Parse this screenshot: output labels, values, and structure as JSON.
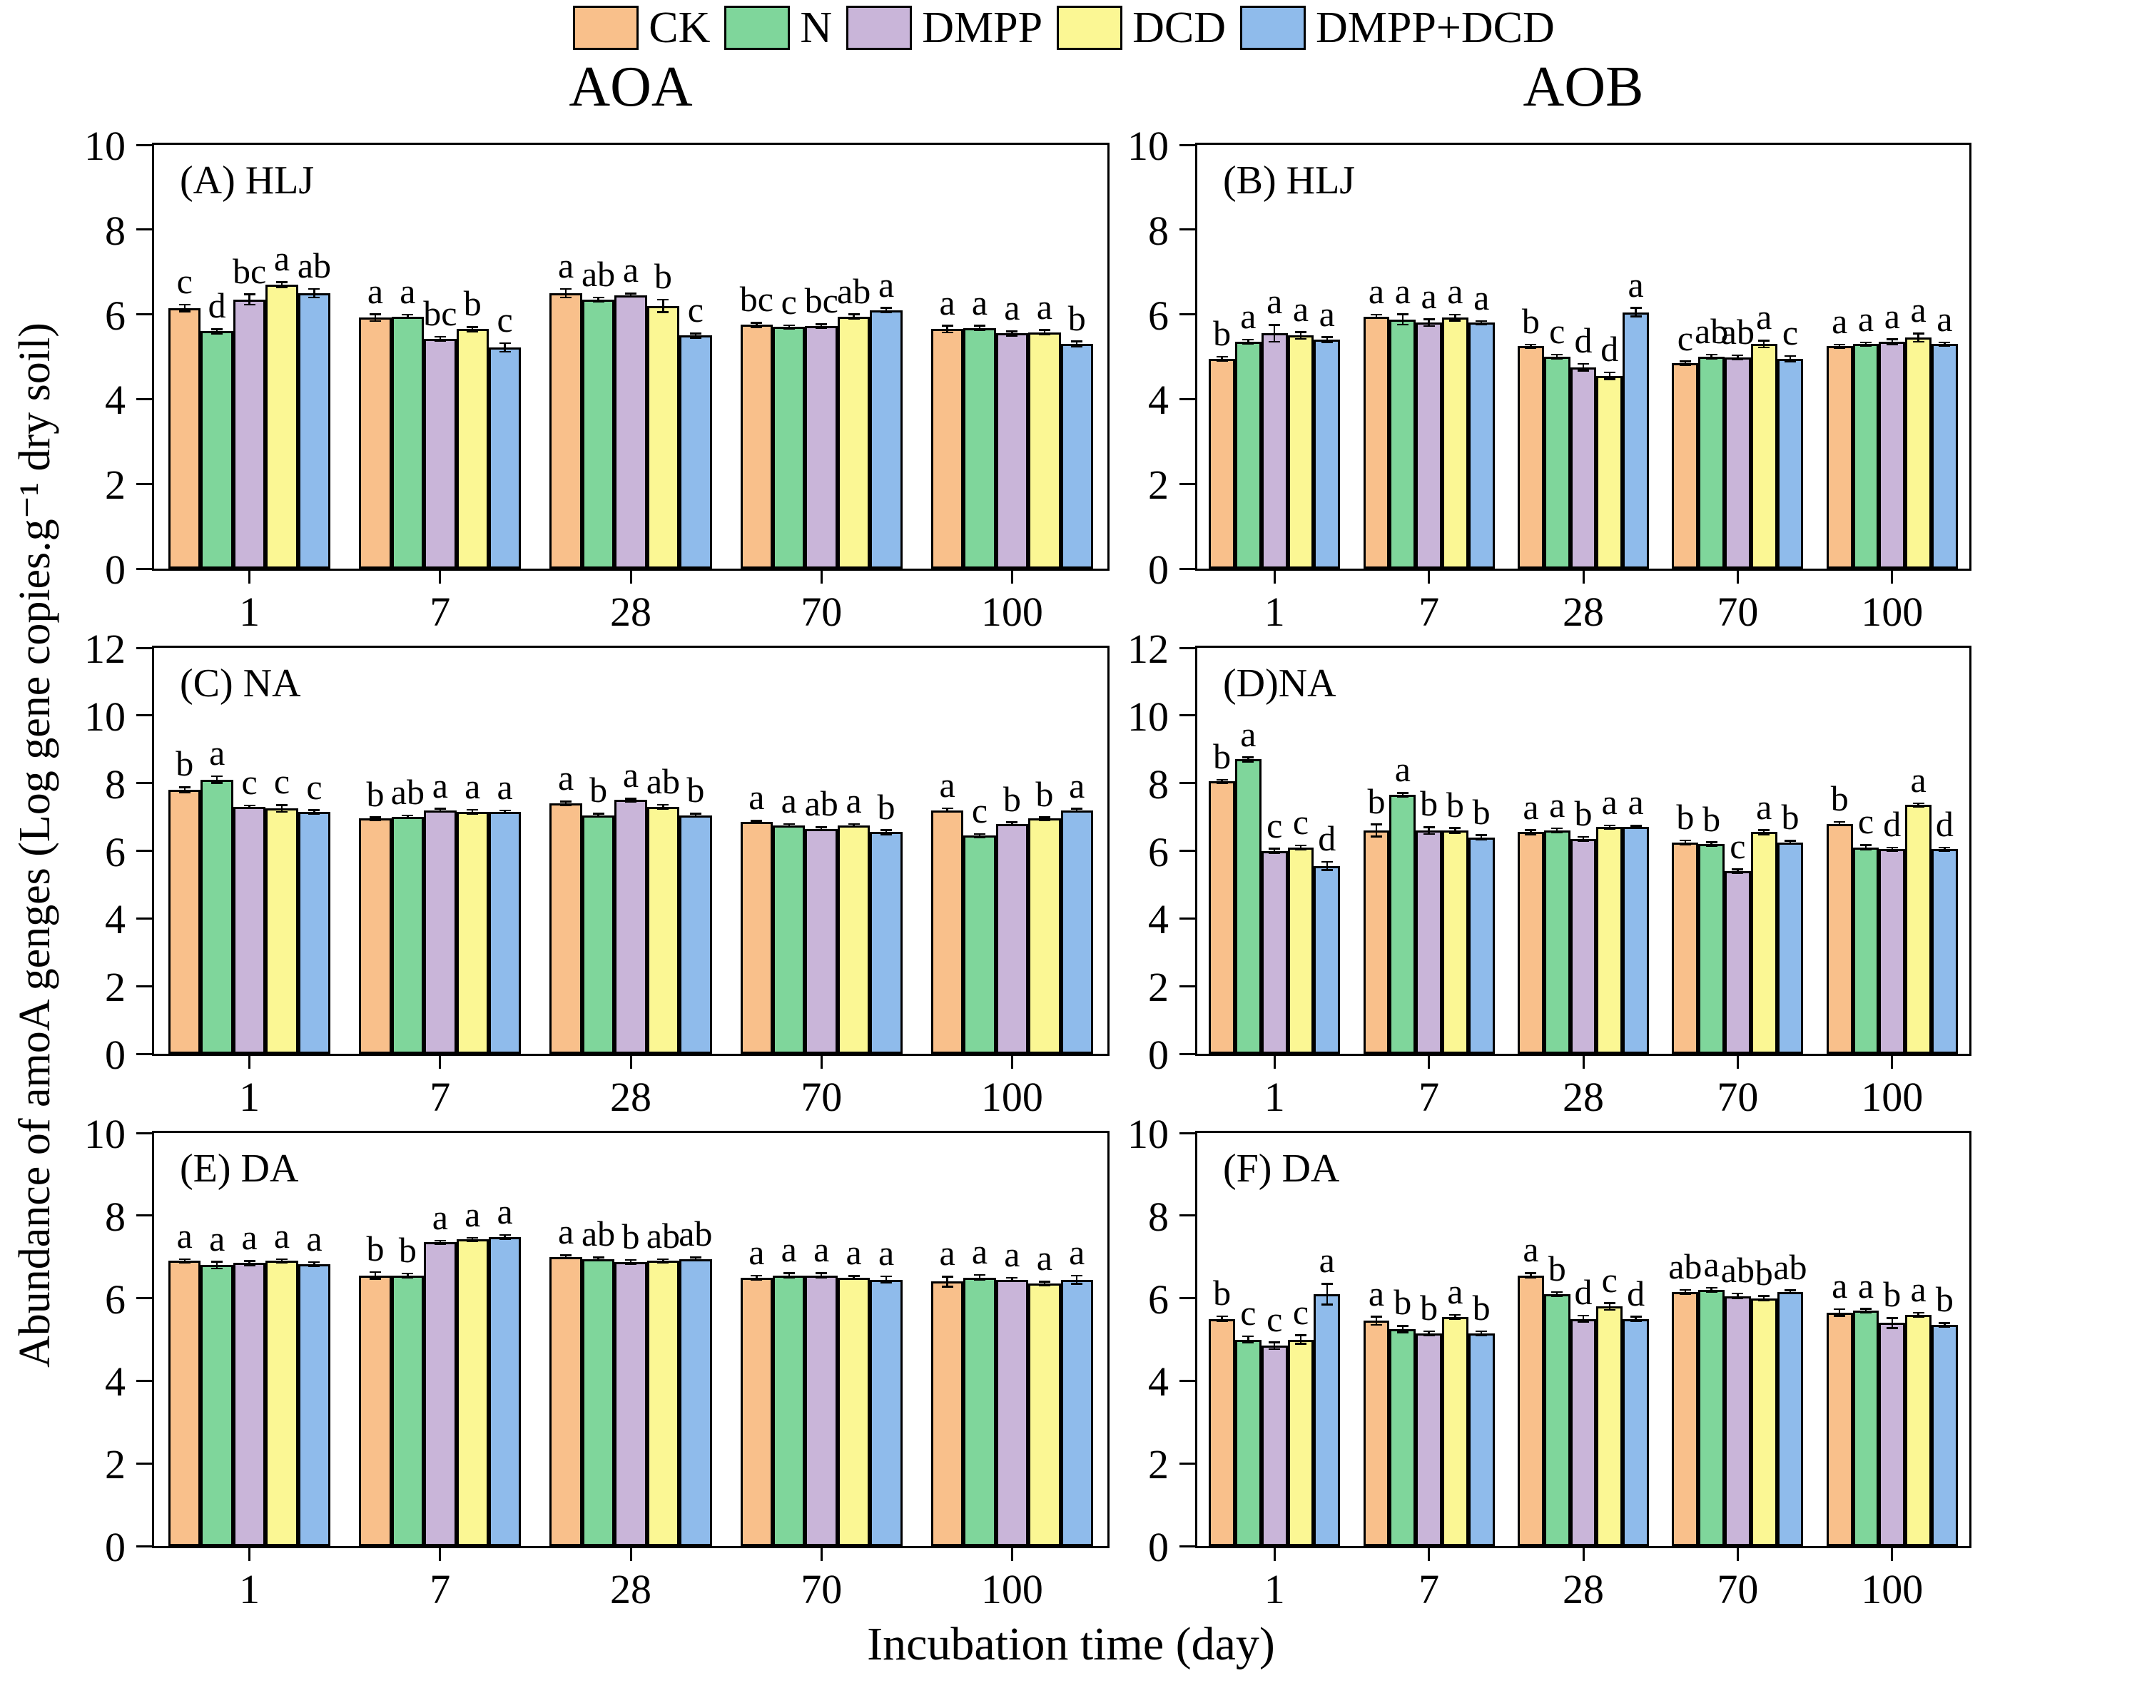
{
  "chart_data": {
    "type": "bar",
    "xlabel": "Incubation time (day)",
    "ylabel": "Abundance of amoA genges (Log gene copies.g⁻¹ dry soil)",
    "columns": [
      "AOA",
      "AOB"
    ],
    "categories": [
      "1",
      "7",
      "28",
      "70",
      "100"
    ],
    "series_names": [
      "CK",
      "N",
      "DMPP",
      "DCD",
      "DMPP+DCD"
    ],
    "colors": {
      "CK": "#F9C08B",
      "N": "#7FD69B",
      "DMPP": "#C9B5D9",
      "DCD": "#FBF794",
      "DMPP+DCD": "#8FBBEB"
    },
    "legend_position": "top-center",
    "grid": false,
    "panels": [
      {
        "id": "A",
        "label": "(A) HLJ",
        "column": "AOA",
        "ylim": [
          0,
          10
        ],
        "yticks": [
          0,
          2,
          4,
          6,
          8,
          10
        ],
        "series": [
          {
            "name": "CK",
            "values": [
              6.15,
              5.92,
              6.5,
              5.75,
              5.65
            ],
            "errors": [
              0.08,
              0.08,
              0.1,
              0.05,
              0.08
            ],
            "letters": [
              "c",
              "a",
              "a",
              "bc",
              "a"
            ]
          },
          {
            "name": "N",
            "values": [
              5.6,
              5.95,
              6.35,
              5.7,
              5.68
            ],
            "errors": [
              0.05,
              0.04,
              0.05,
              0.04,
              0.05
            ],
            "letters": [
              "d",
              "a",
              "ab",
              "c",
              "a"
            ]
          },
          {
            "name": "DMPP",
            "values": [
              6.35,
              5.42,
              6.45,
              5.72,
              5.55
            ],
            "errors": [
              0.12,
              0.05,
              0.04,
              0.05,
              0.05
            ],
            "letters": [
              "bc",
              "bc",
              "a",
              "bc",
              "a"
            ]
          },
          {
            "name": "DCD",
            "values": [
              6.7,
              5.65,
              6.2,
              5.95,
              5.58
            ],
            "errors": [
              0.06,
              0.05,
              0.15,
              0.05,
              0.05
            ],
            "letters": [
              "a",
              "b",
              "b",
              "ab",
              "a"
            ]
          },
          {
            "name": "DMPP+DCD",
            "values": [
              6.5,
              5.22,
              5.5,
              6.1,
              5.3
            ],
            "errors": [
              0.1,
              0.1,
              0.05,
              0.05,
              0.06
            ],
            "letters": [
              "ab",
              "c",
              "c",
              "a",
              "b"
            ]
          }
        ]
      },
      {
        "id": "B",
        "label": "(B) HLJ",
        "column": "AOB",
        "ylim": [
          0,
          10
        ],
        "yticks": [
          0,
          2,
          4,
          6,
          8,
          10
        ],
        "series": [
          {
            "name": "CK",
            "values": [
              4.95,
              5.95,
              5.25,
              4.85,
              5.25
            ],
            "errors": [
              0.05,
              0.04,
              0.04,
              0.04,
              0.04
            ],
            "letters": [
              "b",
              "a",
              "b",
              "c",
              "a"
            ]
          },
          {
            "name": "N",
            "values": [
              5.35,
              5.88,
              5.0,
              5.0,
              5.3
            ],
            "errors": [
              0.05,
              0.12,
              0.05,
              0.05,
              0.04
            ],
            "letters": [
              "a",
              "a",
              "c",
              "ab",
              "a"
            ]
          },
          {
            "name": "DMPP",
            "values": [
              5.55,
              5.8,
              4.75,
              4.98,
              5.35
            ],
            "errors": [
              0.2,
              0.08,
              0.08,
              0.05,
              0.06
            ],
            "letters": [
              "a",
              "a",
              "d",
              "ab",
              "a"
            ]
          },
          {
            "name": "DCD",
            "values": [
              5.5,
              5.92,
              4.55,
              5.3,
              5.45
            ],
            "errors": [
              0.08,
              0.07,
              0.08,
              0.08,
              0.1
            ],
            "letters": [
              "a",
              "a",
              "d",
              "a",
              "a"
            ]
          },
          {
            "name": "DMPP+DCD",
            "values": [
              5.4,
              5.8,
              6.05,
              4.95,
              5.3
            ],
            "errors": [
              0.06,
              0.04,
              0.1,
              0.07,
              0.04
            ],
            "letters": [
              "a",
              "a",
              "a",
              "c",
              "a"
            ]
          }
        ]
      },
      {
        "id": "C",
        "label": "(C) NA",
        "column": "AOA",
        "ylim": [
          0,
          12
        ],
        "yticks": [
          0,
          2,
          4,
          6,
          8,
          10,
          12
        ],
        "series": [
          {
            "name": "CK",
            "values": [
              7.8,
              6.95,
              7.4,
              6.85,
              7.2
            ],
            "errors": [
              0.08,
              0.04,
              0.06,
              0.04,
              0.05
            ],
            "letters": [
              "b",
              "b",
              "a",
              "a",
              "a"
            ]
          },
          {
            "name": "N",
            "values": [
              8.1,
              7.0,
              7.05,
              6.75,
              6.45
            ],
            "errors": [
              0.1,
              0.04,
              0.05,
              0.04,
              0.05
            ],
            "letters": [
              "a",
              "ab",
              "b",
              "a",
              "c"
            ]
          },
          {
            "name": "DMPP",
            "values": [
              7.3,
              7.2,
              7.5,
              6.65,
              6.8
            ],
            "errors": [
              0.04,
              0.04,
              0.04,
              0.05,
              0.04
            ],
            "letters": [
              "c",
              "a",
              "a",
              "ab",
              "b"
            ]
          },
          {
            "name": "DCD",
            "values": [
              7.25,
              7.15,
              7.3,
              6.75,
              6.95
            ],
            "errors": [
              0.1,
              0.06,
              0.06,
              0.04,
              0.04
            ],
            "letters": [
              "c",
              "a",
              "ab",
              "a",
              "b"
            ]
          },
          {
            "name": "DMPP+DCD",
            "values": [
              7.15,
              7.15,
              7.05,
              6.55,
              7.2
            ],
            "errors": [
              0.05,
              0.04,
              0.05,
              0.06,
              0.04
            ],
            "letters": [
              "c",
              "a",
              "b",
              "b",
              "a"
            ]
          }
        ]
      },
      {
        "id": "D",
        "label": "(D)NA",
        "column": "AOB",
        "ylim": [
          0,
          12
        ],
        "yticks": [
          0,
          2,
          4,
          6,
          8,
          10,
          12
        ],
        "series": [
          {
            "name": "CK",
            "values": [
              8.05,
              6.6,
              6.55,
              6.25,
              6.8
            ],
            "errors": [
              0.05,
              0.18,
              0.06,
              0.06,
              0.05
            ],
            "letters": [
              "b",
              "b",
              "a",
              "b",
              "b"
            ]
          },
          {
            "name": "N",
            "values": [
              8.7,
              7.65,
              6.6,
              6.2,
              6.1
            ],
            "errors": [
              0.06,
              0.06,
              0.06,
              0.05,
              0.07
            ],
            "letters": [
              "a",
              "a",
              "a",
              "b",
              "c"
            ]
          },
          {
            "name": "DMPP",
            "values": [
              6.0,
              6.6,
              6.35,
              5.4,
              6.05
            ],
            "errors": [
              0.06,
              0.1,
              0.06,
              0.05,
              0.05
            ],
            "letters": [
              "c",
              "b",
              "b",
              "c",
              "d"
            ]
          },
          {
            "name": "DCD",
            "values": [
              6.1,
              6.6,
              6.7,
              6.55,
              7.35
            ],
            "errors": [
              0.06,
              0.07,
              0.05,
              0.06,
              0.05
            ],
            "letters": [
              "c",
              "b",
              "a",
              "a",
              "a"
            ]
          },
          {
            "name": "DMPP+DCD",
            "values": [
              5.55,
              6.4,
              6.7,
              6.25,
              6.05
            ],
            "errors": [
              0.12,
              0.06,
              0.04,
              0.05,
              0.05
            ],
            "letters": [
              "d",
              "b",
              "a",
              "b",
              "d"
            ]
          }
        ]
      },
      {
        "id": "E",
        "label": "(E) DA",
        "column": "AOA",
        "ylim": [
          0,
          10
        ],
        "yticks": [
          0,
          2,
          4,
          6,
          8,
          10
        ],
        "series": [
          {
            "name": "CK",
            "values": [
              6.9,
              6.55,
              7.0,
              6.5,
              6.4
            ],
            "errors": [
              0.04,
              0.08,
              0.04,
              0.05,
              0.12
            ],
            "letters": [
              "a",
              "b",
              "a",
              "a",
              "a"
            ]
          },
          {
            "name": "N",
            "values": [
              6.8,
              6.55,
              6.95,
              6.55,
              6.5
            ],
            "errors": [
              0.08,
              0.05,
              0.04,
              0.06,
              0.06
            ],
            "letters": [
              "a",
              "b",
              "ab",
              "a",
              "a"
            ]
          },
          {
            "name": "DMPP",
            "values": [
              6.85,
              7.35,
              6.88,
              6.55,
              6.45
            ],
            "errors": [
              0.05,
              0.04,
              0.05,
              0.06,
              0.04
            ],
            "letters": [
              "a",
              "a",
              "b",
              "a",
              "a"
            ]
          },
          {
            "name": "DCD",
            "values": [
              6.9,
              7.42,
              6.9,
              6.5,
              6.35
            ],
            "errors": [
              0.04,
              0.04,
              0.04,
              0.04,
              0.05
            ],
            "letters": [
              "a",
              "a",
              "ab",
              "a",
              "a"
            ]
          },
          {
            "name": "DMPP+DCD",
            "values": [
              6.82,
              7.48,
              6.95,
              6.45,
              6.45
            ],
            "errors": [
              0.05,
              0.05,
              0.04,
              0.08,
              0.1
            ],
            "letters": [
              "a",
              "a",
              "ab",
              "a",
              "a"
            ]
          }
        ]
      },
      {
        "id": "F",
        "label": "(F) DA",
        "column": "AOB",
        "ylim": [
          0,
          10
        ],
        "yticks": [
          0,
          2,
          4,
          6,
          8,
          10
        ],
        "series": [
          {
            "name": "CK",
            "values": [
              5.5,
              5.45,
              6.55,
              6.15,
              5.65
            ],
            "errors": [
              0.06,
              0.1,
              0.06,
              0.05,
              0.08
            ],
            "letters": [
              "b",
              "a",
              "a",
              "ab",
              "a"
            ]
          },
          {
            "name": "N",
            "values": [
              5.0,
              5.25,
              6.1,
              6.2,
              5.7
            ],
            "errors": [
              0.08,
              0.08,
              0.05,
              0.05,
              0.04
            ],
            "letters": [
              "c",
              "b",
              "b",
              "a",
              "a"
            ]
          },
          {
            "name": "DMPP",
            "values": [
              4.85,
              5.15,
              5.5,
              6.05,
              5.4
            ],
            "errors": [
              0.08,
              0.05,
              0.08,
              0.06,
              0.12
            ],
            "letters": [
              "c",
              "b",
              "d",
              "ab",
              "b"
            ]
          },
          {
            "name": "DCD",
            "values": [
              5.0,
              5.55,
              5.8,
              6.0,
              5.6
            ],
            "errors": [
              0.1,
              0.05,
              0.08,
              0.05,
              0.05
            ],
            "letters": [
              "c",
              "a",
              "c",
              "b",
              "a"
            ]
          },
          {
            "name": "DMPP+DCD",
            "values": [
              6.1,
              5.15,
              5.5,
              6.15,
              5.35
            ],
            "errors": [
              0.25,
              0.05,
              0.05,
              0.04,
              0.05
            ],
            "letters": [
              "a",
              "b",
              "d",
              "ab",
              "b"
            ]
          }
        ]
      }
    ]
  }
}
